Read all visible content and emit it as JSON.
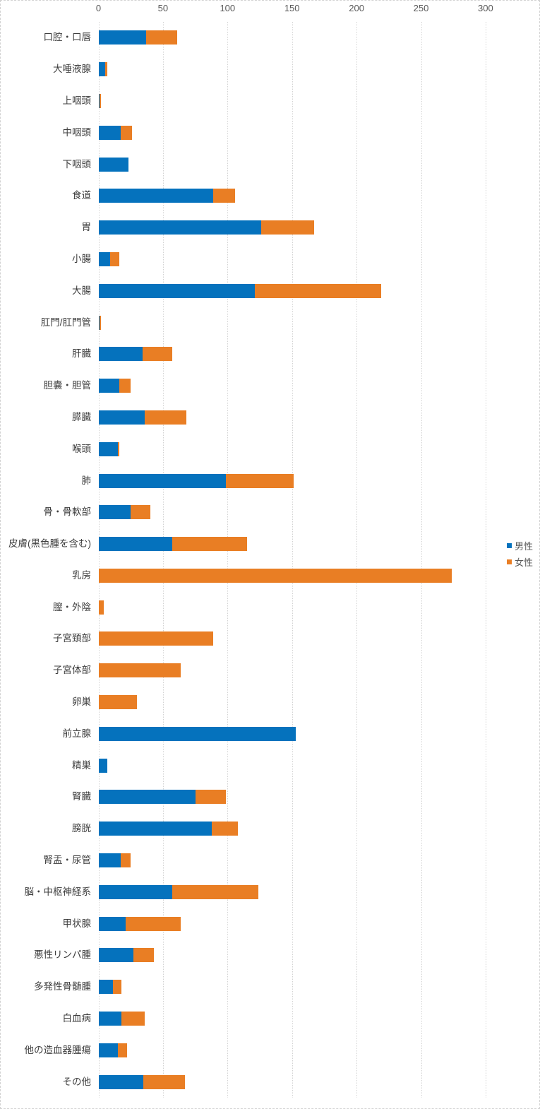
{
  "chart_data": {
    "type": "bar",
    "orientation": "horizontal",
    "stacked": true,
    "title": "",
    "xlabel": "",
    "ylabel": "",
    "xlim": [
      0,
      300
    ],
    "x_ticks": [
      0,
      50,
      100,
      150,
      200,
      250,
      300
    ],
    "grid": "vertical dashed",
    "legend_position": "right",
    "categories": [
      "口腔・口唇",
      "大唾液腺",
      "上咽頭",
      "中咽頭",
      "下咽頭",
      "食道",
      "胃",
      "小腸",
      "大腸",
      "肛門/肛門管",
      "肝臓",
      "胆嚢・胆管",
      "膵臓",
      "喉頭",
      "肺",
      "骨・骨軟部",
      "皮膚(黒色腫を含む)",
      "乳房",
      "膣・外陰",
      "子宮頚部",
      "子宮体部",
      "卵巣",
      "前立腺",
      "精巣",
      "腎臓",
      "膀胱",
      "腎盂・尿管",
      "脳・中枢神経系",
      "甲状腺",
      "悪性リンパ腫",
      "多発性骨髄腫",
      "白血病",
      "他の造血器腫瘍",
      "その他"
    ],
    "series": [
      {
        "name": "男性",
        "color": "#0572BD",
        "values": [
          37,
          5,
          1,
          17,
          23,
          89,
          126,
          9,
          121,
          1,
          34,
          16,
          36,
          15,
          99,
          25,
          57,
          0,
          0,
          0,
          0,
          0,
          153,
          7,
          75,
          88,
          17,
          57,
          21,
          27,
          11,
          18,
          15,
          35
        ]
      },
      {
        "name": "女性",
        "color": "#E97E24",
        "values": [
          24,
          2,
          1,
          9,
          0,
          17,
          41,
          7,
          98,
          1,
          23,
          9,
          32,
          1,
          52,
          15,
          58,
          274,
          4,
          89,
          64,
          30,
          0,
          0,
          24,
          20,
          8,
          67,
          43,
          16,
          7,
          18,
          7,
          32
        ]
      }
    ]
  },
  "colors": {
    "male": "#0572BD",
    "female": "#E97E24",
    "grid": "#d2d2d2",
    "tick_label": "#595959",
    "category_label": "#3d3d3d",
    "border": "#d2d2d2"
  }
}
